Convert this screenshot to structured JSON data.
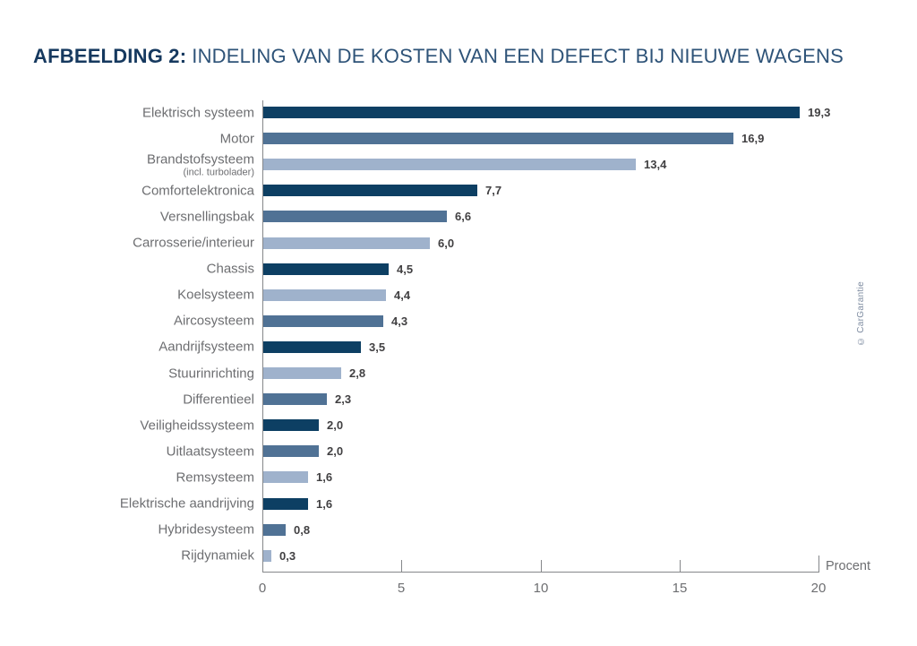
{
  "title": {
    "prefix": "AFBEELDING 2:",
    "rest": "INDELING VAN DE KOSTEN VAN EEN DEFECT BIJ NIEUWE WAGENS"
  },
  "credit": "© CarGarantie",
  "chart_data": {
    "type": "bar",
    "orientation": "horizontal",
    "title": "AFBEELDING 2: INDELING VAN DE KOSTEN VAN EEN DEFECT BIJ NIEUWE WAGENS",
    "xlabel": "Procent",
    "ylabel": "",
    "xlim": [
      0,
      20
    ],
    "x_ticks": [
      0,
      5,
      10,
      15,
      20
    ],
    "grid": false,
    "categories": [
      "Elektrisch systeem",
      "Motor",
      "Brandstofsysteem (incl. turbolader)",
      "Comfortelektronica",
      "Versnellingsbak",
      "Carrosserie/interieur",
      "Chassis",
      "Koelsysteem",
      "Aircosysteem",
      "Aandrijfsysteem",
      "Stuurinrichting",
      "Differentieel",
      "Veiligheidssysteem",
      "Uitlaatsysteem",
      "Remsysteem",
      "Elektrische aandrijving",
      "Hybridesysteem",
      "Rijdynamiek"
    ],
    "values": [
      19.3,
      16.9,
      13.4,
      7.7,
      6.6,
      6.0,
      4.5,
      4.4,
      4.3,
      3.5,
      2.8,
      2.3,
      2.0,
      2.0,
      1.6,
      1.6,
      0.8,
      0.3
    ],
    "palette": {
      "dark": "#0d3f63",
      "medium": "#507295",
      "light": "#9fb2cc"
    },
    "rows": [
      {
        "label": "Elektrisch systeem",
        "value": 19.3,
        "display": "19,3",
        "tone": "dark"
      },
      {
        "label": "Motor",
        "value": 16.9,
        "display": "16,9",
        "tone": "medium"
      },
      {
        "label": "Brandstofsysteem",
        "sublabel": "(incl. turbolader)",
        "value": 13.4,
        "display": "13,4",
        "tone": "light"
      },
      {
        "label": "Comfortelektronica",
        "value": 7.7,
        "display": "7,7",
        "tone": "dark"
      },
      {
        "label": "Versnellingsbak",
        "value": 6.6,
        "display": "6,6",
        "tone": "medium"
      },
      {
        "label": "Carrosserie/interieur",
        "value": 6.0,
        "display": "6,0",
        "tone": "light"
      },
      {
        "label": "Chassis",
        "value": 4.5,
        "display": "4,5",
        "tone": "dark"
      },
      {
        "label": "Koelsysteem",
        "value": 4.4,
        "display": "4,4",
        "tone": "light"
      },
      {
        "label": "Aircosysteem",
        "value": 4.3,
        "display": "4,3",
        "tone": "medium"
      },
      {
        "label": "Aandrijfsysteem",
        "value": 3.5,
        "display": "3,5",
        "tone": "dark"
      },
      {
        "label": "Stuurinrichting",
        "value": 2.8,
        "display": "2,8",
        "tone": "light"
      },
      {
        "label": "Differentieel",
        "value": 2.3,
        "display": "2,3",
        "tone": "medium"
      },
      {
        "label": "Veiligheidssysteem",
        "value": 2.0,
        "display": "2,0",
        "tone": "dark"
      },
      {
        "label": "Uitlaatsysteem",
        "value": 2.0,
        "display": "2,0",
        "tone": "medium"
      },
      {
        "label": "Remsysteem",
        "value": 1.6,
        "display": "1,6",
        "tone": "light"
      },
      {
        "label": "Elektrische aandrijving",
        "value": 1.6,
        "display": "1,6",
        "tone": "dark"
      },
      {
        "label": "Hybridesysteem",
        "value": 0.8,
        "display": "0,8",
        "tone": "medium"
      },
      {
        "label": "Rijdynamiek",
        "value": 0.3,
        "display": "0,3",
        "tone": "light"
      }
    ]
  }
}
